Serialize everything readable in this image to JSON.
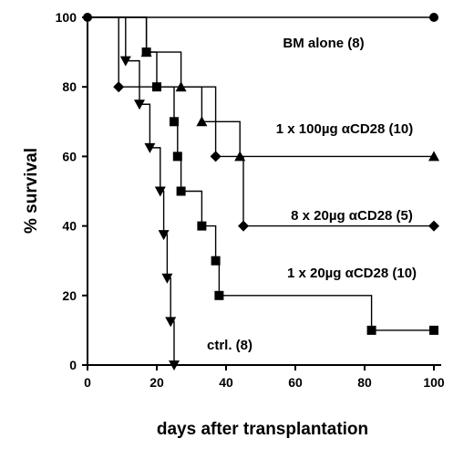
{
  "chart_data": {
    "type": "line",
    "subtype": "kaplan-meier-step",
    "title": "",
    "xlabel": "days after transplantation",
    "ylabel": "% survival",
    "xlim": [
      0,
      100
    ],
    "ylim": [
      0,
      100
    ],
    "x_ticks": [
      0,
      20,
      40,
      60,
      80,
      100
    ],
    "y_ticks": [
      0,
      20,
      40,
      60,
      80,
      100
    ],
    "grid": false,
    "legend": "none",
    "series": [
      {
        "name": "BM alone (8)",
        "marker": "circle",
        "color": "#000000",
        "points": [
          [
            0,
            100
          ],
          [
            100,
            100
          ]
        ]
      },
      {
        "name": "1 x 100µg αCD28 (10)",
        "marker": "triangle-up",
        "color": "#000000",
        "points": [
          [
            0,
            100
          ],
          [
            17,
            90
          ],
          [
            27,
            80
          ],
          [
            33,
            70
          ],
          [
            44,
            60
          ],
          [
            100,
            60
          ]
        ]
      },
      {
        "name": "8 x 20µg αCD28 (5)",
        "marker": "diamond",
        "color": "#000000",
        "points": [
          [
            0,
            100
          ],
          [
            9,
            80
          ],
          [
            37,
            60
          ],
          [
            45,
            40
          ],
          [
            100,
            40
          ]
        ]
      },
      {
        "name": "1 x 20µg αCD28 (10)",
        "marker": "square",
        "color": "#000000",
        "points": [
          [
            0,
            100
          ],
          [
            17,
            90
          ],
          [
            20,
            80
          ],
          [
            25,
            70
          ],
          [
            26,
            60
          ],
          [
            27,
            50
          ],
          [
            33,
            40
          ],
          [
            37,
            30
          ],
          [
            38,
            20
          ],
          [
            82,
            10
          ],
          [
            100,
            10
          ]
        ]
      },
      {
        "name": "ctrl. (8)",
        "marker": "triangle-down",
        "color": "#000000",
        "points": [
          [
            0,
            100
          ],
          [
            11,
            87.5
          ],
          [
            15,
            75
          ],
          [
            18,
            62.5
          ],
          [
            21,
            50
          ],
          [
            22,
            37.5
          ],
          [
            23,
            25
          ],
          [
            24,
            12.5
          ],
          [
            25,
            0
          ]
        ]
      }
    ]
  }
}
